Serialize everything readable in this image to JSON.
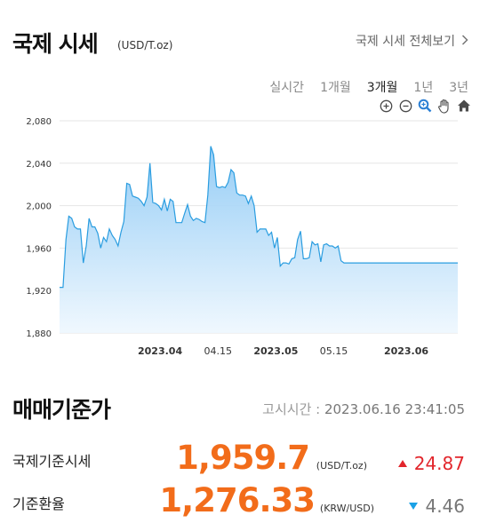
{
  "header": {
    "title": "국제 시세",
    "unit": "(USD/T.oz)",
    "view_all": "국제 시세 전체보기",
    "view_all_icon": "chevron-right-icon"
  },
  "periods": [
    {
      "label": "실시간",
      "active": false
    },
    {
      "label": "1개월",
      "active": false
    },
    {
      "label": "3개월",
      "active": true
    },
    {
      "label": "1년",
      "active": false
    },
    {
      "label": "3년",
      "active": false
    }
  ],
  "tools": [
    "zoom-in-icon",
    "zoom-out-icon",
    "magnifier-icon",
    "pan-hand-icon",
    "home-icon"
  ],
  "chart_data": {
    "type": "area",
    "ylim": [
      1880,
      2080
    ],
    "yticks": [
      {
        "value": 1880,
        "label": "1,880"
      },
      {
        "value": 1920,
        "label": "1,920"
      },
      {
        "value": 1960,
        "label": "1,960"
      },
      {
        "value": 2000,
        "label": "2,000"
      },
      {
        "value": 2040,
        "label": "2,040"
      },
      {
        "value": 2080,
        "label": "2,080"
      }
    ],
    "xticks": [
      {
        "value": 2023.25,
        "label": "2023.04",
        "bold": true
      },
      {
        "value": 2023.29,
        "label": "04.15",
        "bold": false
      },
      {
        "value": 2023.33,
        "label": "2023.05",
        "bold": true
      },
      {
        "value": 2023.37,
        "label": "05.15",
        "bold": false
      },
      {
        "value": 2023.42,
        "label": "2023.06",
        "bold": true
      }
    ],
    "xlim": [
      2023.1806,
      2023.4556
    ],
    "line_color": "#2a9de0",
    "fill_top": "#8fcaf5",
    "fill_bottom": "#eef7fe",
    "series": [
      {
        "x": [
          2023.1806,
          2023.183,
          2023.185,
          2023.187,
          2023.189,
          2023.191,
          2023.193,
          2023.195,
          2023.197,
          2023.199,
          2023.201,
          2023.203,
          2023.205,
          2023.207,
          2023.209,
          2023.211,
          2023.213,
          2023.215,
          2023.217,
          2023.219,
          2023.221,
          2023.223,
          2023.225,
          2023.227,
          2023.229,
          2023.231,
          2023.233,
          2023.235,
          2023.237,
          2023.239,
          2023.241,
          2023.243,
          2023.245,
          2023.247,
          2023.249,
          2023.251,
          2023.253,
          2023.255,
          2023.257,
          2023.259,
          2023.261,
          2023.263,
          2023.265,
          2023.267,
          2023.269,
          2023.271,
          2023.273,
          2023.275,
          2023.277,
          2023.279,
          2023.281,
          2023.283,
          2023.285,
          2023.287,
          2023.289,
          2023.291,
          2023.293,
          2023.295,
          2023.297,
          2023.299,
          2023.301,
          2023.303,
          2023.305,
          2023.307,
          2023.309,
          2023.311,
          2023.313,
          2023.315,
          2023.317,
          2023.319,
          2023.321,
          2023.323,
          2023.325,
          2023.327,
          2023.329,
          2023.331,
          2023.333,
          2023.335,
          2023.337,
          2023.339,
          2023.341,
          2023.343,
          2023.345,
          2023.347,
          2023.349,
          2023.351,
          2023.353,
          2023.355,
          2023.357,
          2023.359,
          2023.361,
          2023.363,
          2023.365,
          2023.367,
          2023.369,
          2023.371,
          2023.373,
          2023.375,
          2023.377,
          2023.379,
          2023.381,
          2023.383,
          2023.385,
          2023.387,
          2023.389,
          2023.391,
          2023.393,
          2023.395,
          2023.397,
          2023.399,
          2023.401,
          2023.403,
          2023.405,
          2023.407,
          2023.409,
          2023.411,
          2023.413,
          2023.415,
          2023.417,
          2023.419,
          2023.421,
          2023.423,
          2023.425,
          2023.427,
          2023.429,
          2023.431,
          2023.433,
          2023.435,
          2023.437,
          2023.439,
          2023.441,
          2023.443,
          2023.445,
          2023.447,
          2023.449,
          2023.451,
          2023.453,
          2023.4556
        ],
        "y": [
          1923,
          1923,
          1968,
          1990,
          1988,
          1980,
          1978,
          1978,
          1946,
          1962,
          1988,
          1980,
          1980,
          1974,
          1960,
          1970,
          1966,
          1978,
          1972,
          1968,
          1962,
          1975,
          1985,
          2021,
          2020,
          2009,
          2008,
          2007,
          2004,
          2000,
          2008,
          2040,
          2003,
          2002,
          2000,
          1996,
          2006,
          1995,
          2006,
          2004,
          1984,
          1984,
          1984,
          1993,
          2001,
          1990,
          1986,
          1988,
          1987,
          1985,
          1984,
          2010,
          2056,
          2048,
          2018,
          2017,
          2018,
          2017,
          2022,
          2034,
          2031,
          2012,
          2010,
          2010,
          2009,
          2002,
          2009,
          2000,
          1975,
          1978,
          1978,
          1978,
          1972,
          1975,
          1960,
          1970,
          1943,
          1946,
          1946,
          1945,
          1950,
          1951,
          1968,
          1976,
          1950,
          1950,
          1951,
          1966,
          1963,
          1964,
          1947,
          1963,
          1964,
          1962,
          1962,
          1960,
          1962,
          1948,
          1946,
          1946,
          1946,
          1946,
          1946,
          1946,
          1946,
          1946,
          1946,
          1946,
          1946,
          1946,
          1946,
          1946,
          1946,
          1946,
          1946,
          1946,
          1946,
          1946,
          1946,
          1946,
          1946,
          1946,
          1946,
          1946,
          1946,
          1946,
          1946,
          1946,
          1946,
          1946,
          1946,
          1946,
          1946,
          1946,
          1946,
          1946,
          1946,
          1946
        ]
      }
    ]
  },
  "section2": {
    "title": "매매기준가",
    "notice_prefix": "고시시간 : ",
    "notice_time": "2023.06.16 23:41:05"
  },
  "rows": [
    {
      "label": "국제기준시세",
      "value": "1,959.7",
      "unit": "(USD/T.oz)",
      "direction": "up",
      "change": "24.87",
      "change_color": "#e2262c"
    },
    {
      "label": "기준환율",
      "value": "1,276.33",
      "unit": "(KRW/USD)",
      "direction": "down",
      "change": "4.46",
      "change_color": "#777777"
    }
  ]
}
